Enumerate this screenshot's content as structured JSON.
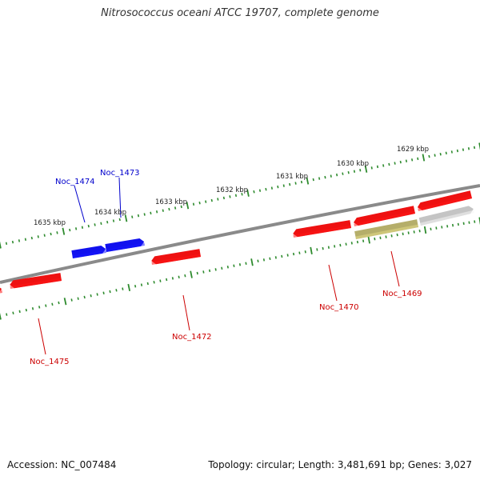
{
  "title": "Nitrosococcus oceani ATCC 19707, complete genome",
  "footer": {
    "accession": "Accession: NC_007484",
    "summary": "Topology: circular; Length: 3,481,691 bp; Genes: 3,027"
  },
  "colors": {
    "backbone": "#8a8a8a",
    "ticks": "#2e8b2e",
    "gene_red": "#ee1111",
    "gene_blue": "#1111ee",
    "gene_olive": "#b5ae6a",
    "gene_gray": "#c4c4c4",
    "label_red": "#cc0000",
    "label_blue": "#0000cc"
  },
  "scale_labels": [
    {
      "kbp": 1635,
      "text": "1635 kbp"
    },
    {
      "kbp": 1634,
      "text": "1634 kbp"
    },
    {
      "kbp": 1633,
      "text": "1633 kbp"
    },
    {
      "kbp": 1632,
      "text": "1632 kbp"
    },
    {
      "kbp": 1631,
      "text": "1631 kbp"
    },
    {
      "kbp": 1630,
      "text": "1630 kbp"
    },
    {
      "kbp": 1629,
      "text": "1629 kbp"
    }
  ],
  "gene_labels": [
    {
      "text": "Noc_1474",
      "color": "blue"
    },
    {
      "text": "Noc_1473",
      "color": "blue"
    },
    {
      "text": "Noc_1472",
      "color": "red"
    },
    {
      "text": "Noc_1475",
      "color": "red"
    },
    {
      "text": "Noc_1470",
      "color": "red"
    },
    {
      "text": "Noc_1469",
      "color": "red"
    }
  ]
}
